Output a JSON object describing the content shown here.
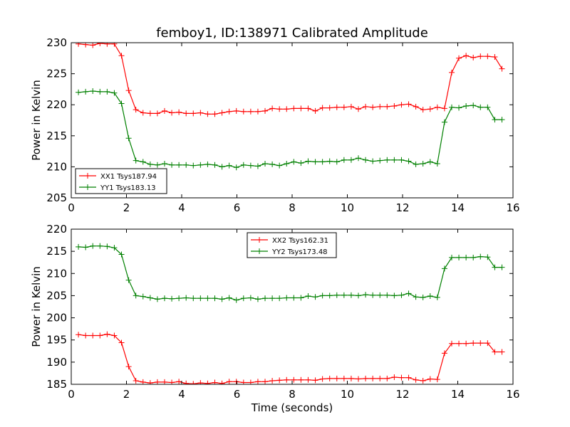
{
  "chart_data": [
    {
      "type": "line",
      "title": "femboy1, ID:138971 Calibrated Amplitude",
      "xlabel": "",
      "ylabel": "Power in Kelvin",
      "xlim": [
        0,
        16
      ],
      "ylim": [
        205,
        230
      ],
      "xticks": [
        0,
        2,
        4,
        6,
        8,
        10,
        12,
        14,
        16
      ],
      "yticks": [
        205,
        210,
        215,
        220,
        225,
        230
      ],
      "legend": "lower-left",
      "x": [
        0.26,
        0.52,
        0.78,
        1.04,
        1.3,
        1.56,
        1.82,
        2.08,
        2.34,
        2.6,
        2.86,
        3.12,
        3.38,
        3.64,
        3.9,
        4.16,
        4.42,
        4.68,
        4.94,
        5.2,
        5.46,
        5.72,
        5.98,
        6.24,
        6.5,
        6.76,
        7.02,
        7.28,
        7.54,
        7.8,
        8.06,
        8.32,
        8.58,
        8.84,
        9.1,
        9.36,
        9.62,
        9.88,
        10.14,
        10.4,
        10.66,
        10.92,
        11.18,
        11.44,
        11.7,
        11.96,
        12.22,
        12.48,
        12.74,
        13.0,
        13.26,
        13.52,
        13.78,
        14.04,
        14.3,
        14.56,
        14.82,
        15.08,
        15.34,
        15.6
      ],
      "series": [
        {
          "name": "XX1 Tsys187.94",
          "color": "#ff0000",
          "values": [
            229.8,
            229.7,
            229.6,
            229.9,
            229.8,
            229.8,
            227.9,
            222.3,
            219.2,
            218.7,
            218.6,
            218.6,
            219.0,
            218.7,
            218.8,
            218.6,
            218.6,
            218.7,
            218.5,
            218.5,
            218.7,
            218.9,
            219.0,
            218.9,
            218.9,
            218.9,
            219.0,
            219.4,
            219.3,
            219.3,
            219.4,
            219.4,
            219.4,
            219.0,
            219.5,
            219.5,
            219.6,
            219.6,
            219.7,
            219.3,
            219.7,
            219.6,
            219.7,
            219.7,
            219.8,
            220.0,
            220.1,
            219.7,
            219.2,
            219.3,
            219.6,
            219.4,
            225.2,
            227.5,
            227.9,
            227.6,
            227.8,
            227.8,
            227.7,
            225.8
          ]
        },
        {
          "name": "YY1 Tsys183.13",
          "color": "#008000",
          "values": [
            222.0,
            222.1,
            222.2,
            222.1,
            222.1,
            221.9,
            220.2,
            214.6,
            211.0,
            210.8,
            210.4,
            210.3,
            210.5,
            210.3,
            210.3,
            210.3,
            210.2,
            210.3,
            210.4,
            210.3,
            210.0,
            210.2,
            209.9,
            210.3,
            210.2,
            210.1,
            210.5,
            210.4,
            210.2,
            210.5,
            210.8,
            210.6,
            210.9,
            210.8,
            210.8,
            210.9,
            210.8,
            211.1,
            211.1,
            211.4,
            211.1,
            210.9,
            211.0,
            211.1,
            211.1,
            211.1,
            210.9,
            210.4,
            210.5,
            210.8,
            210.5,
            217.2,
            219.6,
            219.5,
            219.8,
            219.9,
            219.6,
            219.6,
            217.6,
            217.6
          ]
        }
      ]
    },
    {
      "type": "line",
      "title": "",
      "xlabel": "Time (seconds)",
      "ylabel": "Power in Kelvin",
      "xlim": [
        0,
        16
      ],
      "ylim": [
        185,
        220
      ],
      "xticks": [
        0,
        2,
        4,
        6,
        8,
        10,
        12,
        14,
        16
      ],
      "yticks": [
        185,
        190,
        195,
        200,
        205,
        210,
        215,
        220
      ],
      "legend": "top-center",
      "x": [
        0.26,
        0.52,
        0.78,
        1.04,
        1.3,
        1.56,
        1.82,
        2.08,
        2.34,
        2.6,
        2.86,
        3.12,
        3.38,
        3.64,
        3.9,
        4.16,
        4.42,
        4.68,
        4.94,
        5.2,
        5.46,
        5.72,
        5.98,
        6.24,
        6.5,
        6.76,
        7.02,
        7.28,
        7.54,
        7.8,
        8.06,
        8.32,
        8.58,
        8.84,
        9.1,
        9.36,
        9.62,
        9.88,
        10.14,
        10.4,
        10.66,
        10.92,
        11.18,
        11.44,
        11.7,
        11.96,
        12.22,
        12.48,
        12.74,
        13.0,
        13.26,
        13.52,
        13.78,
        14.04,
        14.3,
        14.56,
        14.82,
        15.08,
        15.34,
        15.6
      ],
      "series": [
        {
          "name": "XX2 Tsys162.31",
          "color": "#ff0000",
          "values": [
            196.2,
            196.0,
            196.0,
            196.0,
            196.3,
            196.0,
            194.4,
            189.0,
            185.8,
            185.5,
            185.3,
            185.5,
            185.5,
            185.4,
            185.6,
            185.2,
            185.1,
            185.3,
            185.2,
            185.4,
            185.2,
            185.6,
            185.6,
            185.4,
            185.4,
            185.6,
            185.6,
            185.8,
            185.9,
            186.0,
            186.0,
            186.0,
            186.0,
            185.9,
            186.2,
            186.3,
            186.3,
            186.3,
            186.3,
            186.2,
            186.3,
            186.3,
            186.3,
            186.3,
            186.6,
            186.5,
            186.5,
            186.0,
            185.8,
            186.2,
            186.1,
            192.0,
            194.2,
            194.2,
            194.2,
            194.3,
            194.3,
            194.3,
            192.3,
            192.3
          ]
        },
        {
          "name": "YY2 Tsys173.48",
          "color": "#008000",
          "values": [
            216.0,
            215.9,
            216.2,
            216.2,
            216.1,
            215.8,
            214.3,
            208.5,
            205.0,
            204.8,
            204.5,
            204.2,
            204.4,
            204.3,
            204.4,
            204.5,
            204.4,
            204.4,
            204.4,
            204.4,
            204.2,
            204.5,
            204.0,
            204.4,
            204.5,
            204.2,
            204.4,
            204.4,
            204.4,
            204.5,
            204.5,
            204.5,
            204.9,
            204.7,
            205.0,
            205.0,
            205.1,
            205.1,
            205.1,
            205.0,
            205.2,
            205.1,
            205.1,
            205.1,
            205.0,
            205.1,
            205.5,
            204.7,
            204.6,
            204.9,
            204.6,
            211.1,
            213.6,
            213.6,
            213.6,
            213.6,
            213.8,
            213.7,
            211.4,
            211.4
          ]
        }
      ]
    }
  ]
}
